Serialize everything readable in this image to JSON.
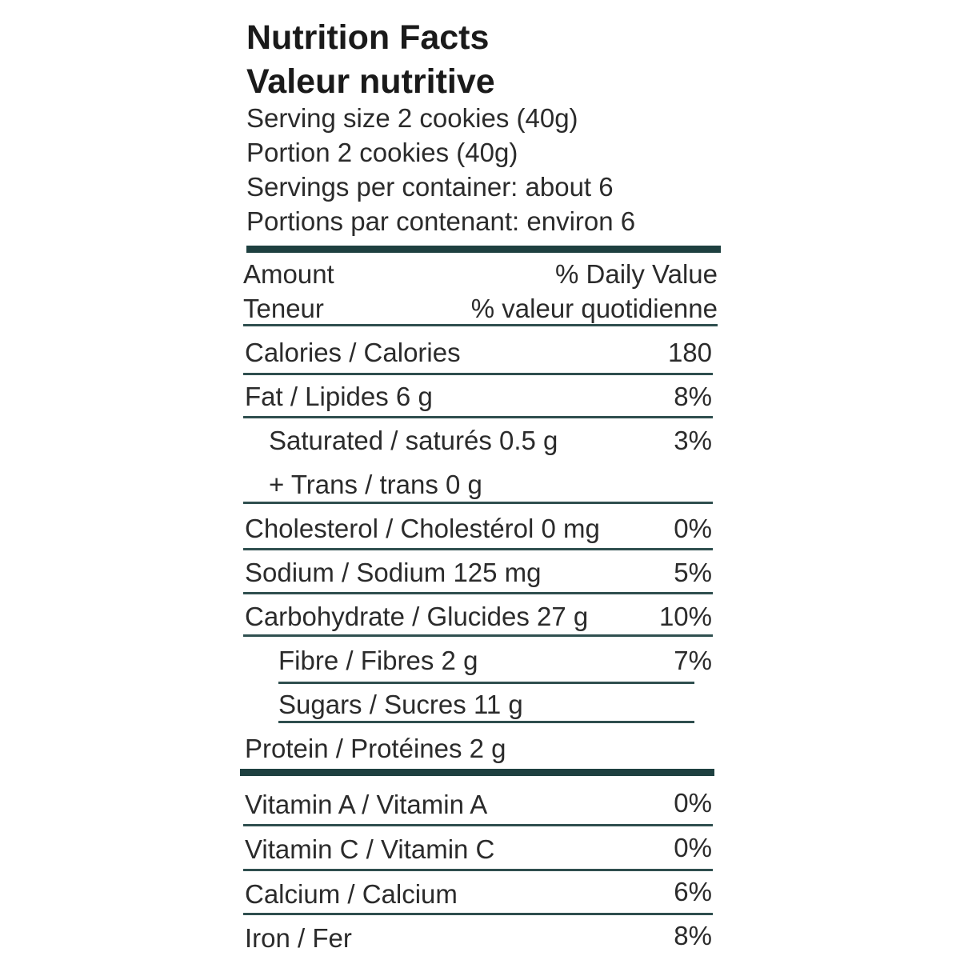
{
  "header": {
    "title_en": "Nutrition Facts",
    "title_fr": "Valeur nutritive",
    "serving_size_en": "Serving size 2 cookies (40g)",
    "serving_size_fr": "Portion 2 cookies (40g)",
    "servings_en": "Servings per container: about 6",
    "servings_fr": "Portions par contenant: environ 6"
  },
  "column_headers": {
    "amount_en": "Amount",
    "amount_fr": "Teneur",
    "dv_en": "% Daily Value",
    "dv_fr": "% valeur quotidienne"
  },
  "nutrients": {
    "calories": {
      "label": "Calories / Calories",
      "value": "180"
    },
    "fat": {
      "label": "Fat / Lipides   6 g",
      "dv": "8%"
    },
    "saturated": {
      "label": "Saturated / saturés 0.5 g",
      "dv": "3%"
    },
    "trans": {
      "label": "+ Trans / trans  0 g"
    },
    "cholesterol": {
      "label": "Cholesterol / Cholestérol  0 mg",
      "dv": "0%"
    },
    "sodium": {
      "label": "Sodium / Sodium  125 mg",
      "dv": "5%"
    },
    "carbohydrate": {
      "label": "Carbohydrate / Glucides  27 g",
      "dv": "10%"
    },
    "fibre": {
      "label": "Fibre / Fibres 2 g",
      "dv": "7%"
    },
    "sugars": {
      "label": "Sugars / Sucres 11 g"
    },
    "protein": {
      "label": "Protein / Protéines  2 g"
    }
  },
  "vitamins": {
    "vitamin_a": {
      "label": "Vitamin A / Vitamin A",
      "dv": "0%"
    },
    "vitamin_c": {
      "label": "Vitamin C / Vitamin C",
      "dv": "0%"
    },
    "calcium": {
      "label": "Calcium / Calcium",
      "dv": "6%"
    },
    "iron": {
      "label": "Iron / Fer",
      "dv": "8%"
    }
  },
  "colors": {
    "rule": "#2f4f4f",
    "thick_rule": "#1e4040",
    "text": "#2b2b2b"
  }
}
